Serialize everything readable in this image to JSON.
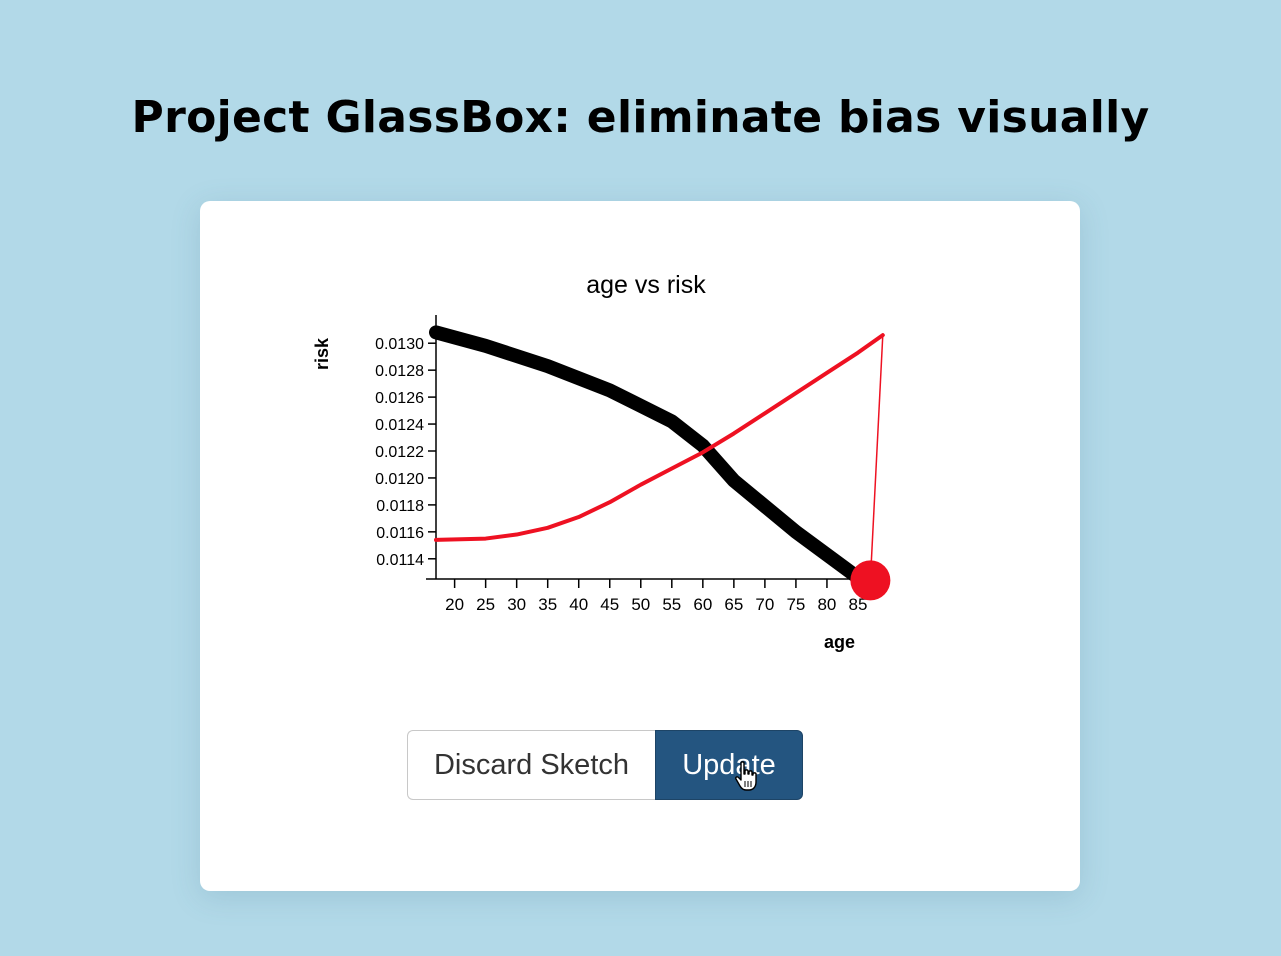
{
  "headline": "Project GlassBox: eliminate bias visually",
  "buttons": {
    "discard": "Discard Sketch",
    "update": "Update"
  },
  "colors": {
    "background": "#b2d9e8",
    "model_line": "#000000",
    "sketch_line": "#ee1122",
    "update_button": "#245580"
  },
  "chart_data": {
    "type": "line",
    "title": "age vs risk",
    "xlabel": "age",
    "ylabel": "risk",
    "x_ticks": [
      20,
      25,
      30,
      35,
      40,
      45,
      50,
      55,
      60,
      65,
      70,
      75,
      80,
      85
    ],
    "y_ticks": [
      "0.0114",
      "0.0116",
      "0.0118",
      "0.0120",
      "0.0122",
      "0.0124",
      "0.0126",
      "0.0128",
      "0.0130"
    ],
    "xlim": [
      17,
      90
    ],
    "ylim": [
      0.01125,
      0.01315
    ],
    "series": [
      {
        "color": "#000000",
        "points": [
          [
            17,
            0.01308
          ],
          [
            25,
            0.01298
          ],
          [
            35,
            0.01283
          ],
          [
            45,
            0.01265
          ],
          [
            55,
            0.01242
          ],
          [
            60,
            0.01224
          ],
          [
            65,
            0.01198
          ],
          [
            75,
            0.0116
          ],
          [
            85,
            0.01126
          ]
        ]
      },
      {
        "color": "#ee1122",
        "points": [
          [
            17,
            0.01154
          ],
          [
            25,
            0.01155
          ],
          [
            30,
            0.01158
          ],
          [
            35,
            0.01163
          ],
          [
            40,
            0.01171
          ],
          [
            45,
            0.01182
          ],
          [
            50,
            0.01195
          ],
          [
            55,
            0.01207
          ],
          [
            60,
            0.01219
          ],
          [
            65,
            0.01233
          ],
          [
            70,
            0.01248
          ],
          [
            75,
            0.01263
          ],
          [
            80,
            0.01278
          ],
          [
            85,
            0.01293
          ],
          [
            89,
            0.01306
          ],
          [
            87,
            0.01124
          ]
        ]
      }
    ],
    "handle": {
      "x": 87,
      "y": 0.01124,
      "color": "#ee1122"
    }
  }
}
